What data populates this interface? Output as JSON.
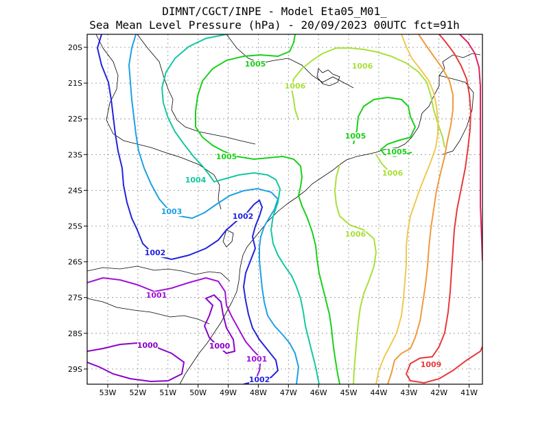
{
  "title_line1": "DIMNT/CGCT/INPE -  Model Eta05_M01_",
  "title_line2": "Sea Mean Level Pressure (hPa) - 20/09/2023 00UTC fct=91h",
  "chart_data": {
    "type": "contour",
    "field": "Sea Mean Level Pressure (hPa)",
    "x_axis": {
      "ticks": [
        "53W",
        "52W",
        "51W",
        "50W",
        "49W",
        "48W",
        "47W",
        "46W",
        "45W",
        "44W",
        "43W",
        "42W",
        "41W"
      ]
    },
    "y_axis": {
      "ticks": [
        "20S",
        "21S",
        "22S",
        "23S",
        "24S",
        "25S",
        "26S",
        "27S",
        "28S",
        "29S"
      ]
    },
    "grid": true,
    "levels": [
      {
        "value": "1000",
        "color": "#8a00c8"
      },
      {
        "value": "1001",
        "color": "#a010d8"
      },
      {
        "value": "1002",
        "color": "#2222dd"
      },
      {
        "value": "1003",
        "color": "#1aa0e6"
      },
      {
        "value": "1004",
        "color": "#10c8a0"
      },
      {
        "value": "1005",
        "color": "#18d018"
      },
      {
        "value": "1006",
        "color": "#a8e03a"
      },
      {
        "value": "1009",
        "color": "#e83838"
      }
    ],
    "contour_labels": [
      {
        "text": "1005",
        "level": 5
      },
      {
        "text": "1006",
        "level": 6
      },
      {
        "text": "1006",
        "level": 6
      },
      {
        "text": "1005",
        "level": 5
      },
      {
        "text": "1005",
        "level": 5
      },
      {
        "text": "1005",
        "level": 5
      },
      {
        "text": "1006",
        "level": 6
      },
      {
        "text": "1004",
        "level": 4
      },
      {
        "text": "1003",
        "level": 3
      },
      {
        "text": "1002",
        "level": 2
      },
      {
        "text": "1002",
        "level": 2
      },
      {
        "text": "1006",
        "level": 6
      },
      {
        "text": "1001",
        "level": 1
      },
      {
        "text": "1000",
        "level": 0
      },
      {
        "text": "1000",
        "level": 0
      },
      {
        "text": "1001",
        "level": 1
      },
      {
        "text": "1002",
        "level": 2
      },
      {
        "text": "1009",
        "level": 7
      }
    ]
  }
}
